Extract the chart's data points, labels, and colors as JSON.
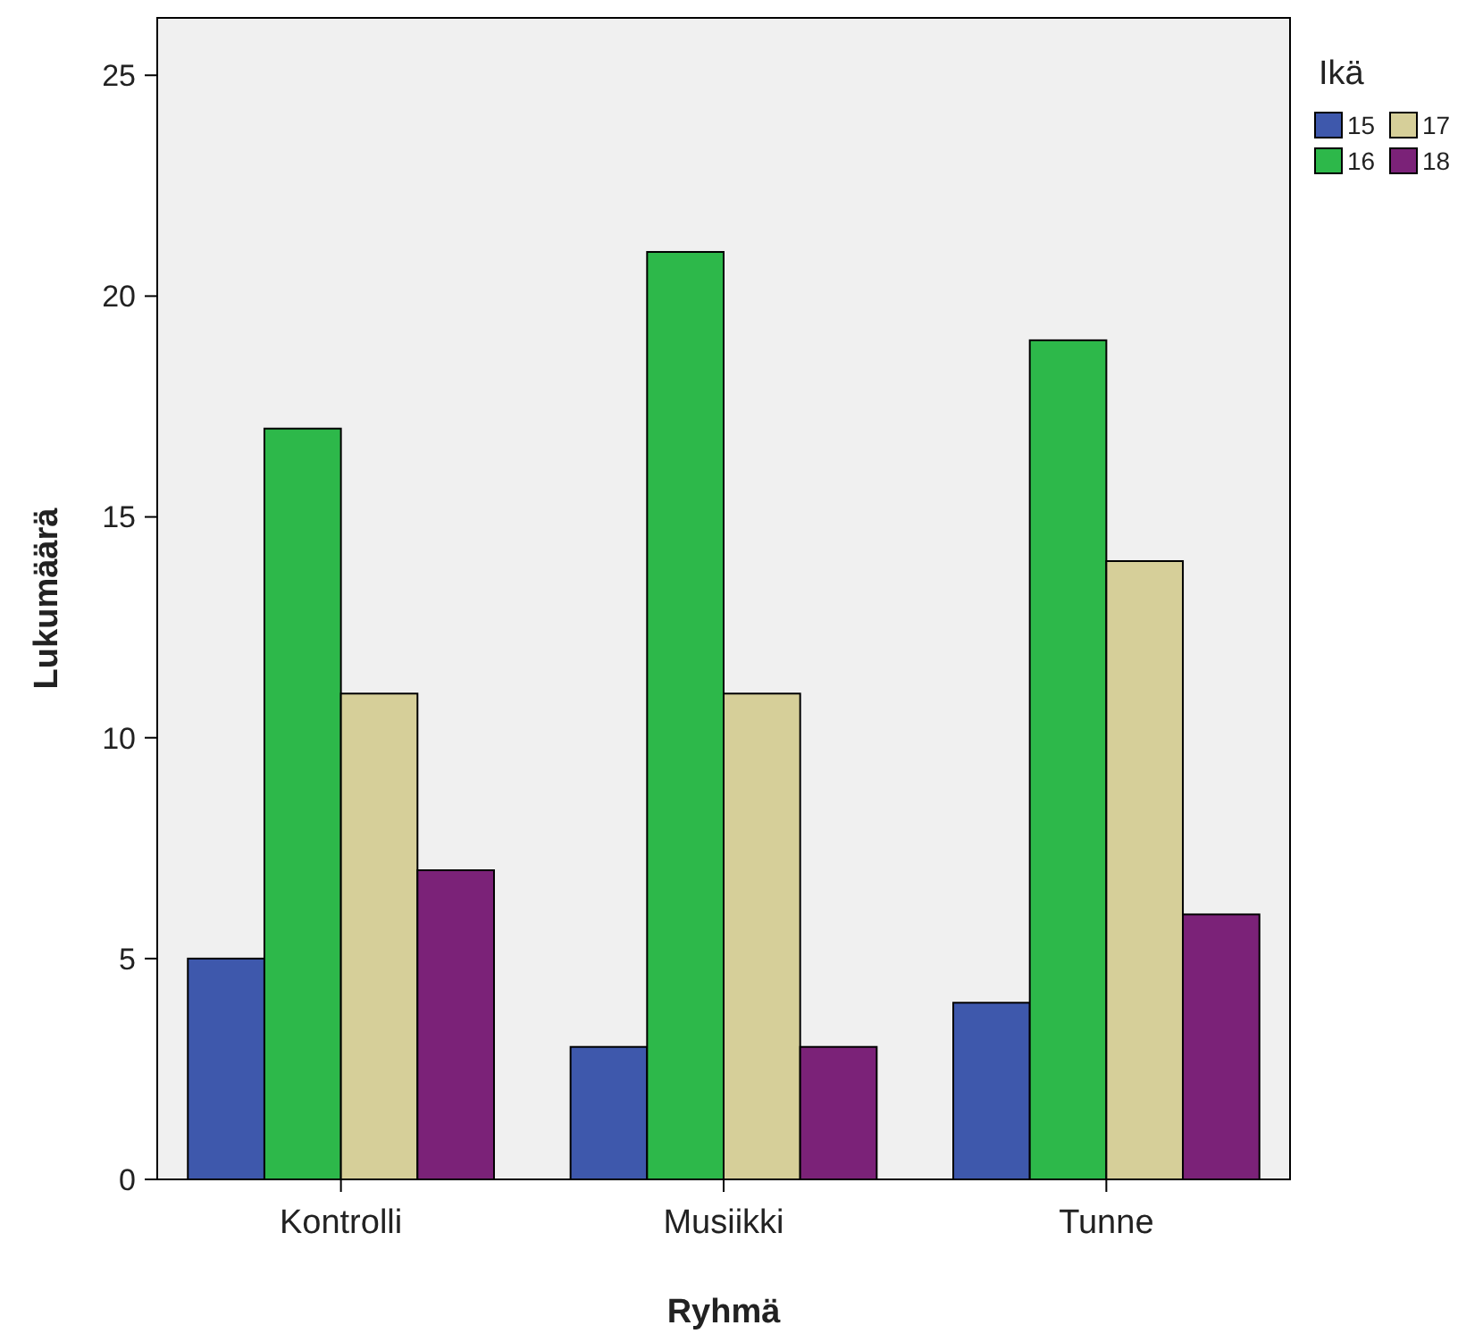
{
  "chart_data": {
    "type": "bar",
    "xlabel": "Ryhmä",
    "ylabel": "Lukumäärä",
    "legend_title": "Ikä",
    "legend": "top right",
    "categories": [
      "Kontrolli",
      "Musiikki",
      "Tunne"
    ],
    "series": [
      {
        "name": "15",
        "color": "#3e58ac",
        "values": [
          5,
          3,
          4
        ]
      },
      {
        "name": "16",
        "color": "#2db84a",
        "values": [
          17,
          21,
          19
        ]
      },
      {
        "name": "17",
        "color": "#d6cf99",
        "values": [
          11,
          11,
          14
        ]
      },
      {
        "name": "18",
        "color": "#7b2278",
        "values": [
          7,
          3,
          6
        ]
      }
    ],
    "ylim": [
      0,
      26.3
    ],
    "yticks": [
      0,
      5,
      10,
      15,
      20,
      25
    ],
    "grid": false
  }
}
